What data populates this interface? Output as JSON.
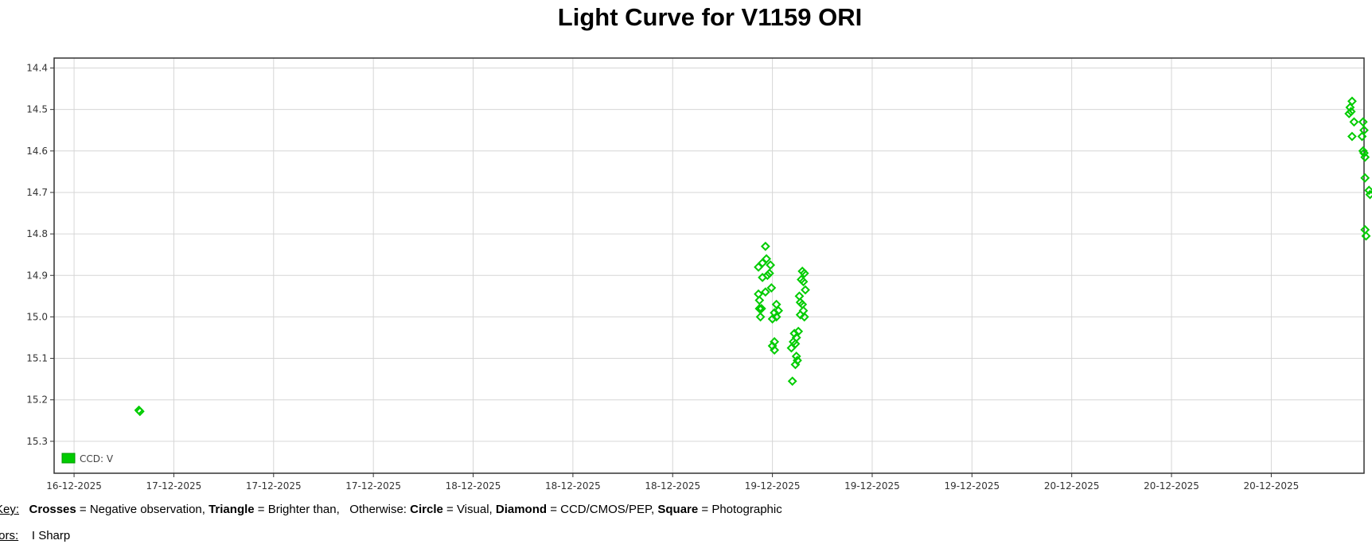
{
  "page": {
    "title": "Light Curve for V1159 ORI"
  },
  "chart_data": {
    "type": "scatter",
    "title": "Light Curve for V1159 ORI",
    "xlabel": "",
    "ylabel": "",
    "y_inverted": true,
    "ylim": [
      14.376,
      15.377
    ],
    "y_ticks": [
      14.4,
      14.5,
      14.6,
      14.7,
      14.8,
      14.9,
      15.0,
      15.1,
      15.2,
      15.3
    ],
    "y_tick_labels": [
      "14.4",
      "14.5",
      "14.6",
      "14.7",
      "14.8",
      "14.9",
      "15.0",
      "15.1",
      "15.2",
      "15.3"
    ],
    "x_tick_labels": [
      "16-12-2025",
      "17-12-2025",
      "17-12-2025",
      "17-12-2025",
      "18-12-2025",
      "18-12-2025",
      "18-12-2025",
      "19-12-2025",
      "19-12-2025",
      "19-12-2025",
      "20-12-2025",
      "20-12-2025",
      "20-12-2025"
    ],
    "x_tick_index": [
      0,
      1,
      2,
      3,
      4,
      5,
      6,
      7,
      8,
      9,
      10,
      11,
      12
    ],
    "xlim": [
      -0.2,
      12.93
    ],
    "grid": true,
    "legend_position": "bottom-left",
    "series": [
      {
        "name": "CCD: V",
        "color": "#00cc00",
        "marker": "diamond",
        "points": [
          [
            0.65,
            15.225
          ],
          [
            0.66,
            15.228
          ],
          [
            6.93,
            14.83
          ],
          [
            6.86,
            14.88
          ],
          [
            6.9,
            14.87
          ],
          [
            6.94,
            14.86
          ],
          [
            6.98,
            14.875
          ],
          [
            6.9,
            14.905
          ],
          [
            6.95,
            14.9
          ],
          [
            6.97,
            14.895
          ],
          [
            6.99,
            14.93
          ],
          [
            6.93,
            14.94
          ],
          [
            6.86,
            14.945
          ],
          [
            6.87,
            14.96
          ],
          [
            6.87,
            14.98
          ],
          [
            6.89,
            14.98
          ],
          [
            6.88,
            15.0
          ],
          [
            7.0,
            15.005
          ],
          [
            7.02,
            14.99
          ],
          [
            7.04,
            14.97
          ],
          [
            7.06,
            14.985
          ],
          [
            7.04,
            15.0
          ],
          [
            7.02,
            15.06
          ],
          [
            7.0,
            15.07
          ],
          [
            7.02,
            15.08
          ],
          [
            7.22,
            15.04
          ],
          [
            7.24,
            15.05
          ],
          [
            7.26,
            15.035
          ],
          [
            7.21,
            15.06
          ],
          [
            7.23,
            15.065
          ],
          [
            7.19,
            15.075
          ],
          [
            7.24,
            15.095
          ],
          [
            7.25,
            15.105
          ],
          [
            7.23,
            15.115
          ],
          [
            7.2,
            15.155
          ],
          [
            7.3,
            14.89
          ],
          [
            7.32,
            14.895
          ],
          [
            7.29,
            14.91
          ],
          [
            7.31,
            14.915
          ],
          [
            7.33,
            14.935
          ],
          [
            7.27,
            14.95
          ],
          [
            7.28,
            14.965
          ],
          [
            7.3,
            14.97
          ],
          [
            7.31,
            14.985
          ],
          [
            7.28,
            14.995
          ],
          [
            7.32,
            15.0
          ],
          [
            12.81,
            14.48
          ],
          [
            12.79,
            14.495
          ],
          [
            12.78,
            14.51
          ],
          [
            12.8,
            14.505
          ],
          [
            12.83,
            14.53
          ],
          [
            12.81,
            14.565
          ],
          [
            12.92,
            14.53
          ],
          [
            12.93,
            14.55
          ],
          [
            12.91,
            14.565
          ],
          [
            12.92,
            14.6
          ],
          [
            12.93,
            14.605
          ],
          [
            12.94,
            14.615
          ],
          [
            12.94,
            14.665
          ],
          [
            12.98,
            14.695
          ],
          [
            12.99,
            14.705
          ],
          [
            12.94,
            14.79
          ],
          [
            12.95,
            14.805
          ]
        ]
      }
    ]
  },
  "legend": {
    "label": "CCD: V",
    "color": "#00cc00"
  },
  "key": {
    "label": "Key:",
    "crosses": "Crosses",
    "crosses_desc": " = Negative observation, ",
    "triangle": "Triangle",
    "triangle_desc": " = Brighter than,   Otherwise: ",
    "circle": "Circle",
    "circle_desc": " = Visual, ",
    "diamond": "Diamond",
    "diamond_desc": " = CCD/CMOS/PEP, ",
    "square": "Square",
    "square_desc": " = Photographic"
  },
  "observers": {
    "label": "tors:",
    "value": "I Sharp"
  }
}
